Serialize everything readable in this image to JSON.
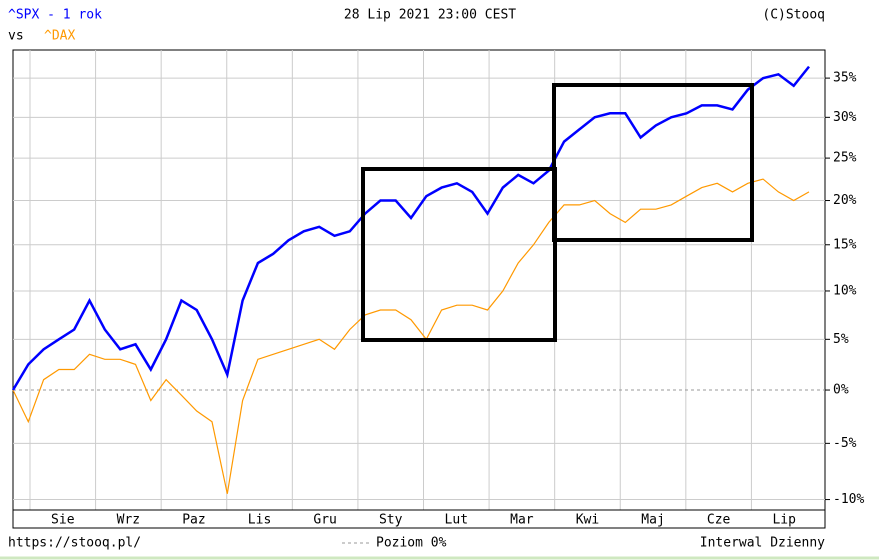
{
  "chart_data": {
    "type": "line",
    "title": "^SPX - 1 rok",
    "subtitle": "28 Lip 2021 23:00 CEST",
    "copyright": "(C)Stooq",
    "vs_label": "vs",
    "footer_url": "https://stooq.pl/",
    "zero_line_label": "Poziom 0%",
    "interval_label": "Interwal Dzienny",
    "months": [
      "Sie",
      "Wrz",
      "Paz",
      "Lis",
      "Gru",
      "Sty",
      "Lut",
      "Mar",
      "Kwi",
      "Maj",
      "Cze",
      "Lip"
    ],
    "ylog": true,
    "grid": true,
    "ylim": [
      -10.9,
      38.7
    ],
    "yticks": [
      {
        "value": 35,
        "label": "35%"
      },
      {
        "value": 30,
        "label": "30%"
      },
      {
        "value": 25,
        "label": "25%"
      },
      {
        "value": 20,
        "label": "20%"
      },
      {
        "value": 15,
        "label": "15%"
      },
      {
        "value": 10,
        "label": "10%"
      },
      {
        "value": 5,
        "label": "5%"
      },
      {
        "value": 0,
        "label": "0%"
      },
      {
        "value": -5,
        "label": "-5%"
      },
      {
        "value": -10,
        "label": "-10%"
      }
    ],
    "series": [
      {
        "name": "^SPX",
        "color": "#0000ff",
        "values": [
          0,
          2.5,
          4,
          5,
          6,
          9,
          6,
          4,
          4.5,
          2,
          5,
          9,
          8,
          5,
          1.5,
          9,
          13,
          14,
          15.5,
          16.5,
          17,
          16,
          16.5,
          18.5,
          20,
          20,
          18,
          20.5,
          21.5,
          22,
          21,
          18.5,
          21.5,
          23,
          22,
          23.5,
          27,
          28.5,
          30,
          30.5,
          30.5,
          27.5,
          29,
          30,
          30.5,
          31.5,
          31.5,
          31,
          33.5,
          35,
          35.5,
          34,
          36.5
        ]
      },
      {
        "name": "^DAX",
        "color": "#ff9900",
        "values": [
          0,
          -3,
          1,
          2,
          2,
          3.5,
          3,
          3,
          2.5,
          -1,
          1,
          -0.5,
          -2,
          -3,
          -9.5,
          -1,
          3,
          3.5,
          4,
          4.5,
          5,
          4,
          6,
          7.5,
          8,
          8,
          7,
          5,
          8,
          8.5,
          8.5,
          8,
          10,
          13,
          15,
          17.5,
          19.5,
          19.5,
          20,
          18.5,
          17.5,
          19,
          19,
          19.5,
          20.5,
          21.5,
          22,
          21,
          22,
          22.5,
          21,
          20,
          21
        ]
      }
    ]
  }
}
